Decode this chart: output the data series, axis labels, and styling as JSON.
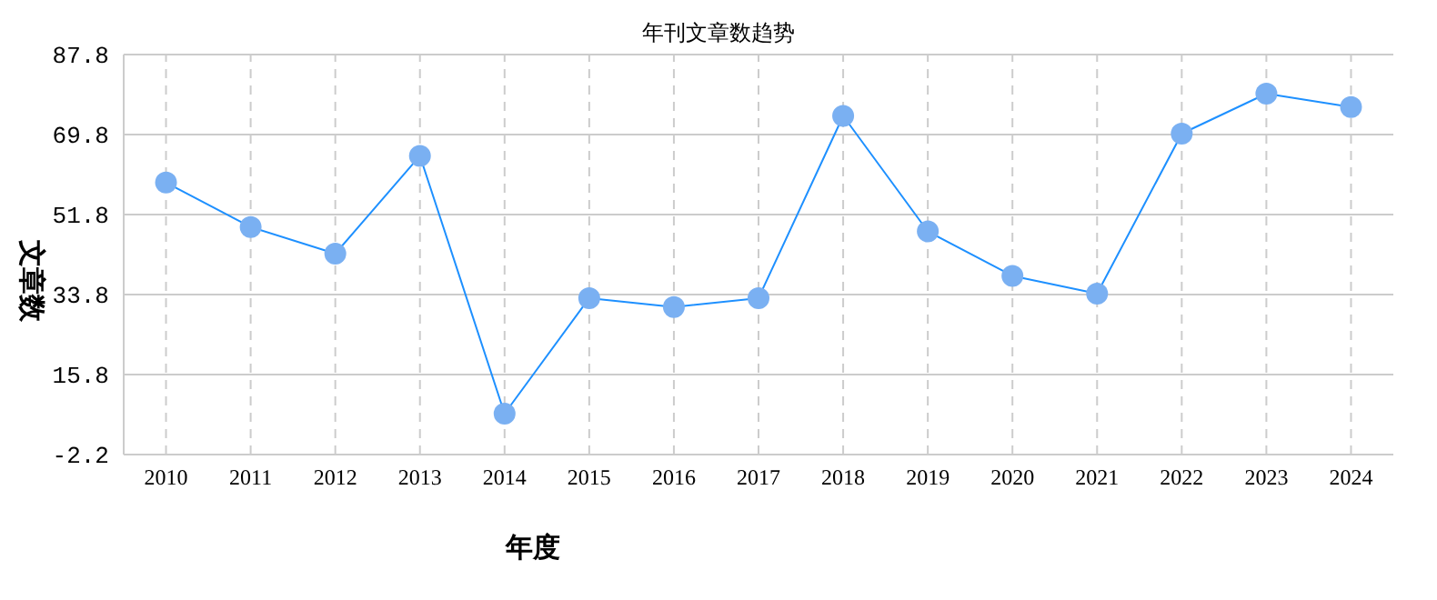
{
  "chart_data": {
    "type": "line",
    "title": "年刊文章数趋势",
    "xlabel": "年度",
    "ylabel": "文章数",
    "categories": [
      "2010",
      "2011",
      "2012",
      "2013",
      "2014",
      "2015",
      "2016",
      "2017",
      "2018",
      "2019",
      "2020",
      "2021",
      "2022",
      "2023",
      "2024"
    ],
    "series": [
      {
        "color": "#1e90ff",
        "values": [
          59,
          49,
          43,
          65,
          7,
          33,
          31,
          33,
          74,
          48,
          38,
          34,
          70,
          79,
          76
        ]
      }
    ],
    "ylim": [
      -2.2,
      87.8
    ],
    "yticks": [
      -2.2,
      15.8,
      33.8,
      51.8,
      69.8,
      87.8
    ],
    "grid": true,
    "marker": "circle",
    "line_style": "solid"
  }
}
